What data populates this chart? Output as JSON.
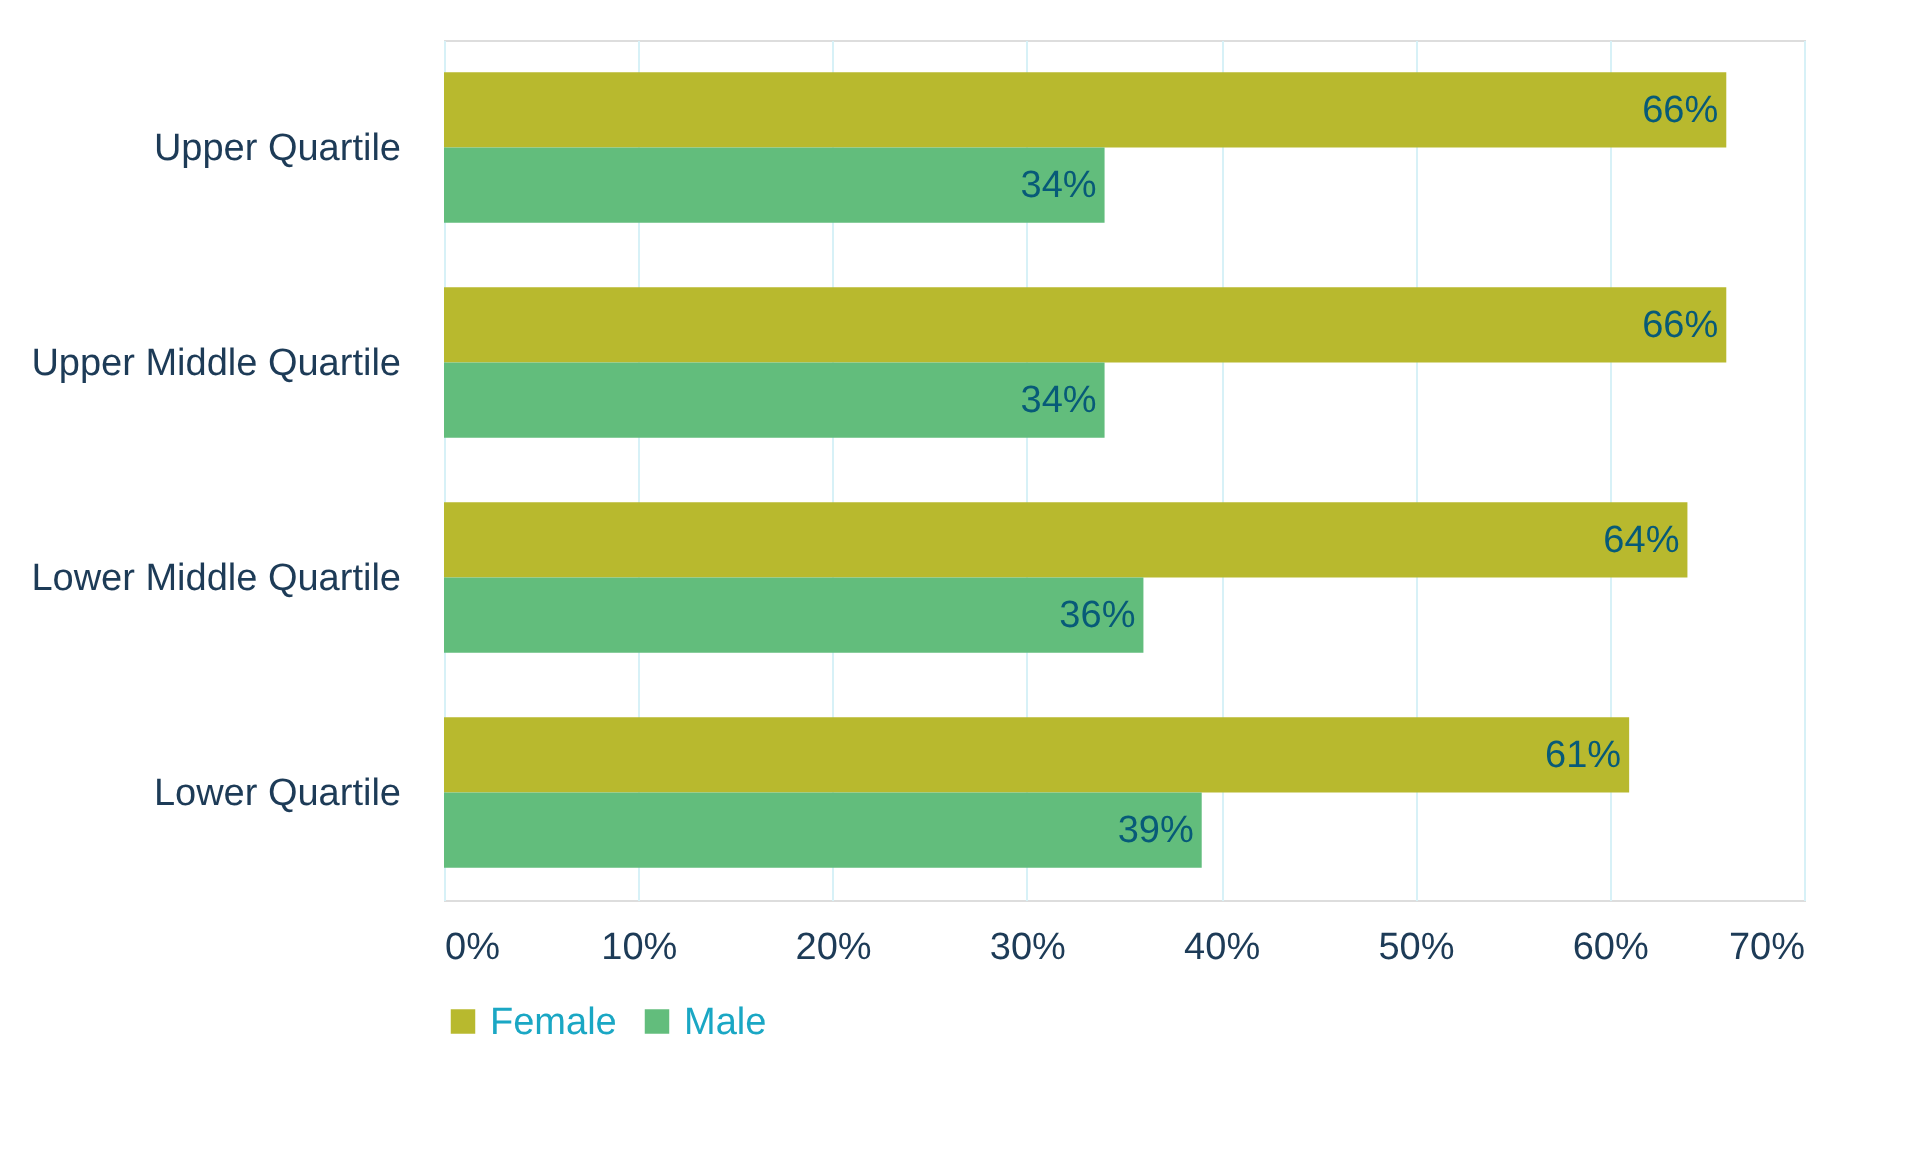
{
  "chart_data": {
    "type": "bar",
    "orientation": "horizontal",
    "categories": [
      "Upper Quartile",
      "Upper Middle Quartile",
      "Lower Middle Quartile",
      "Lower Quartile"
    ],
    "series": [
      {
        "name": "Female",
        "color": "#b8b92e",
        "values": [
          66,
          66,
          64,
          61
        ],
        "value_labels": [
          "66%",
          "66%",
          "64%",
          "61%"
        ]
      },
      {
        "name": "Male",
        "color": "#62bd7c",
        "values": [
          34,
          34,
          36,
          39
        ],
        "value_labels": [
          "34%",
          "34%",
          "36%",
          "39%"
        ]
      }
    ],
    "xlim": [
      0,
      70
    ],
    "xticks": [
      {
        "value": 0,
        "label": "0%"
      },
      {
        "value": 10,
        "label": "10%"
      },
      {
        "value": 20,
        "label": "20%"
      },
      {
        "value": 30,
        "label": "30%"
      },
      {
        "value": 40,
        "label": "40%"
      },
      {
        "value": 50,
        "label": "50%"
      },
      {
        "value": 60,
        "label": "60%"
      },
      {
        "value": 70,
        "label": "70%"
      }
    ],
    "grid": "x",
    "legend": "bottom"
  }
}
